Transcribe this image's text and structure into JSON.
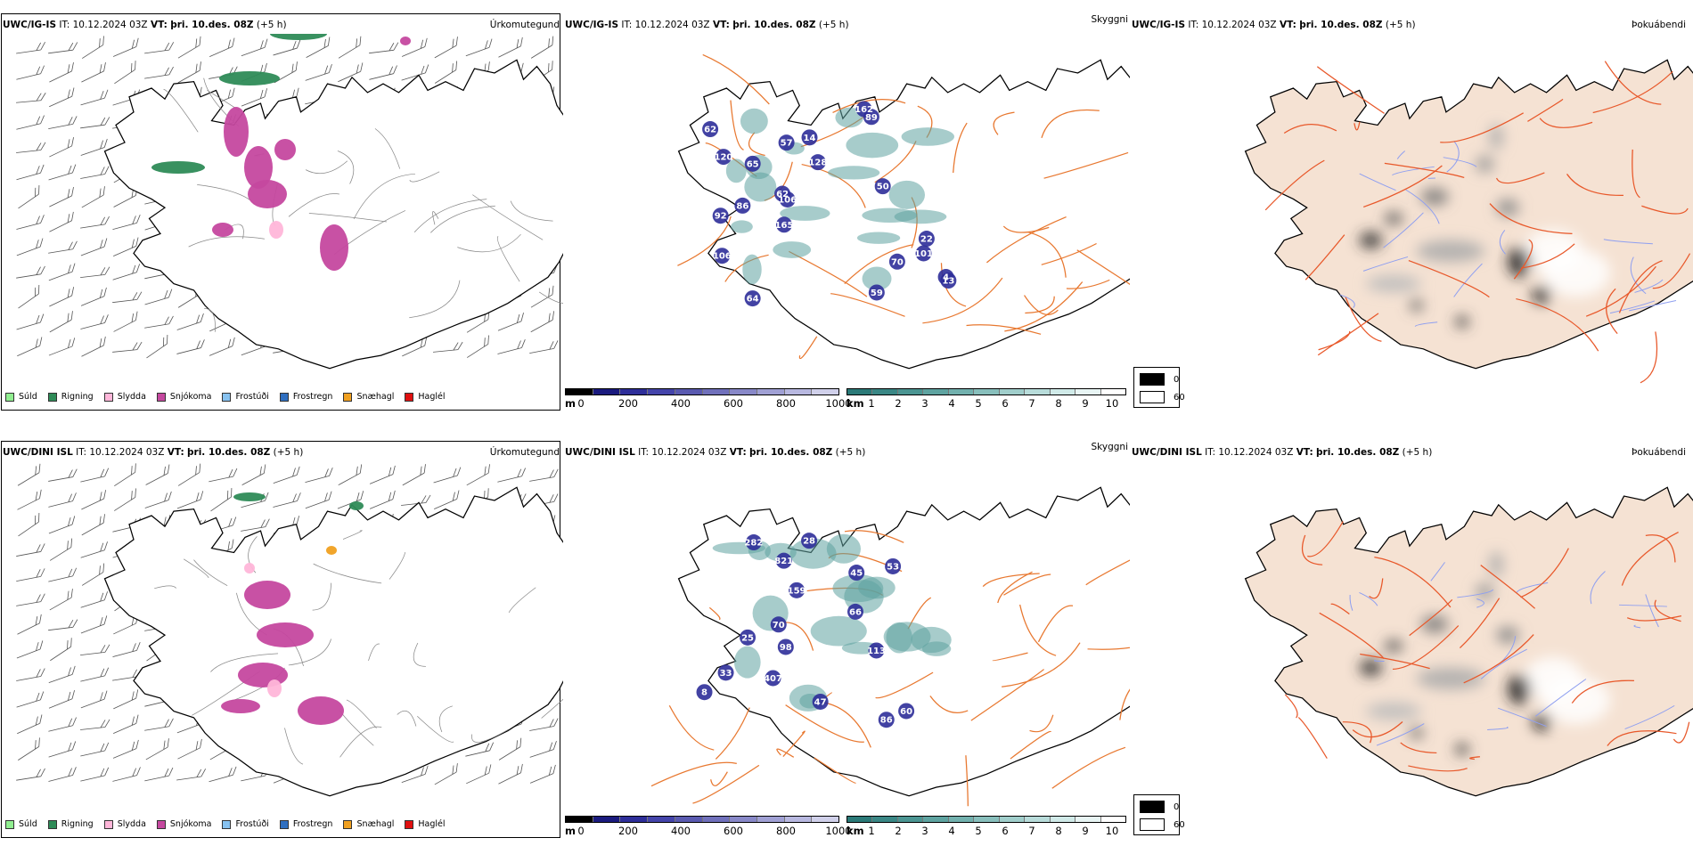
{
  "rows": [
    {
      "model": "UWC/IG-IS",
      "it_label": "IT:",
      "it_value": "10.12.2024 03Z",
      "vt_label": "VT:",
      "vt_value": "þri. 10.des. 08Z",
      "lead": "(+5 h)",
      "visibility_labels": [
        "162",
        "89",
        "62",
        "14",
        "57",
        "120",
        "65",
        "128",
        "50",
        "62",
        "106",
        "86",
        "92",
        "165",
        "22",
        "101",
        "70",
        "106",
        "4",
        "13",
        "64",
        "59"
      ]
    },
    {
      "model": "UWC/DINI ISL",
      "it_label": "IT:",
      "it_value": "10.12.2024 03Z",
      "vt_label": "VT:",
      "vt_value": "þri. 10.des. 08Z",
      "lead": "(+5 h)",
      "visibility_labels": [
        "28",
        "282",
        "821",
        "53",
        "45",
        "159",
        "66",
        "70",
        "25",
        "98",
        "113",
        "33",
        "407",
        "8",
        "47",
        "60",
        "86"
      ]
    }
  ],
  "panel_titles": {
    "precip": "Úrkomutegund",
    "cloud": "Skyggni",
    "fog": "Þokuábendi"
  },
  "precip_legend": [
    {
      "label": "Súld",
      "color": "#90ee90"
    },
    {
      "label": "Rigning",
      "color": "#2e8b57"
    },
    {
      "label": "Slydda",
      "color": "#ffb6d9"
    },
    {
      "label": "Snjókoma",
      "color": "#c5489f"
    },
    {
      "label": "Frostúði",
      "color": "#87c2f0"
    },
    {
      "label": "Frostregn",
      "color": "#2f6fc0"
    },
    {
      "label": "Snæhagl",
      "color": "#f0a020"
    },
    {
      "label": "Haglél",
      "color": "#e01010"
    }
  ],
  "ceiling_scale": {
    "unit": "m",
    "ticks": [
      "0",
      "200",
      "400",
      "600",
      "800",
      "1000"
    ],
    "colors": [
      "#000000",
      "#1a1a7e",
      "#2e2e99",
      "#4444aa",
      "#5a5ab0",
      "#7070bb",
      "#8888c8",
      "#a0a0d4",
      "#b8b8e0",
      "#d0d0ea"
    ]
  },
  "visibility_scale": {
    "unit": "km",
    "ticks": [
      "1",
      "2",
      "3",
      "4",
      "5",
      "6",
      "7",
      "8",
      "9",
      "10"
    ],
    "colors": [
      "#2b7a78",
      "#3a8785",
      "#4b9592",
      "#5ea3a0",
      "#72b1ae",
      "#88bfbc",
      "#a0cecb",
      "#b8dcda",
      "#d0eae8",
      "#e8f5f4",
      "#ffffff"
    ]
  },
  "fog_legend": [
    {
      "label": "0",
      "color": "#000000"
    },
    {
      "label": "60",
      "color": "#ffffff"
    }
  ],
  "colors": {
    "land_fog": "#f5e2d3",
    "roads": "#e87830",
    "rivers": "#8f9ff0",
    "coast": "#000000"
  }
}
